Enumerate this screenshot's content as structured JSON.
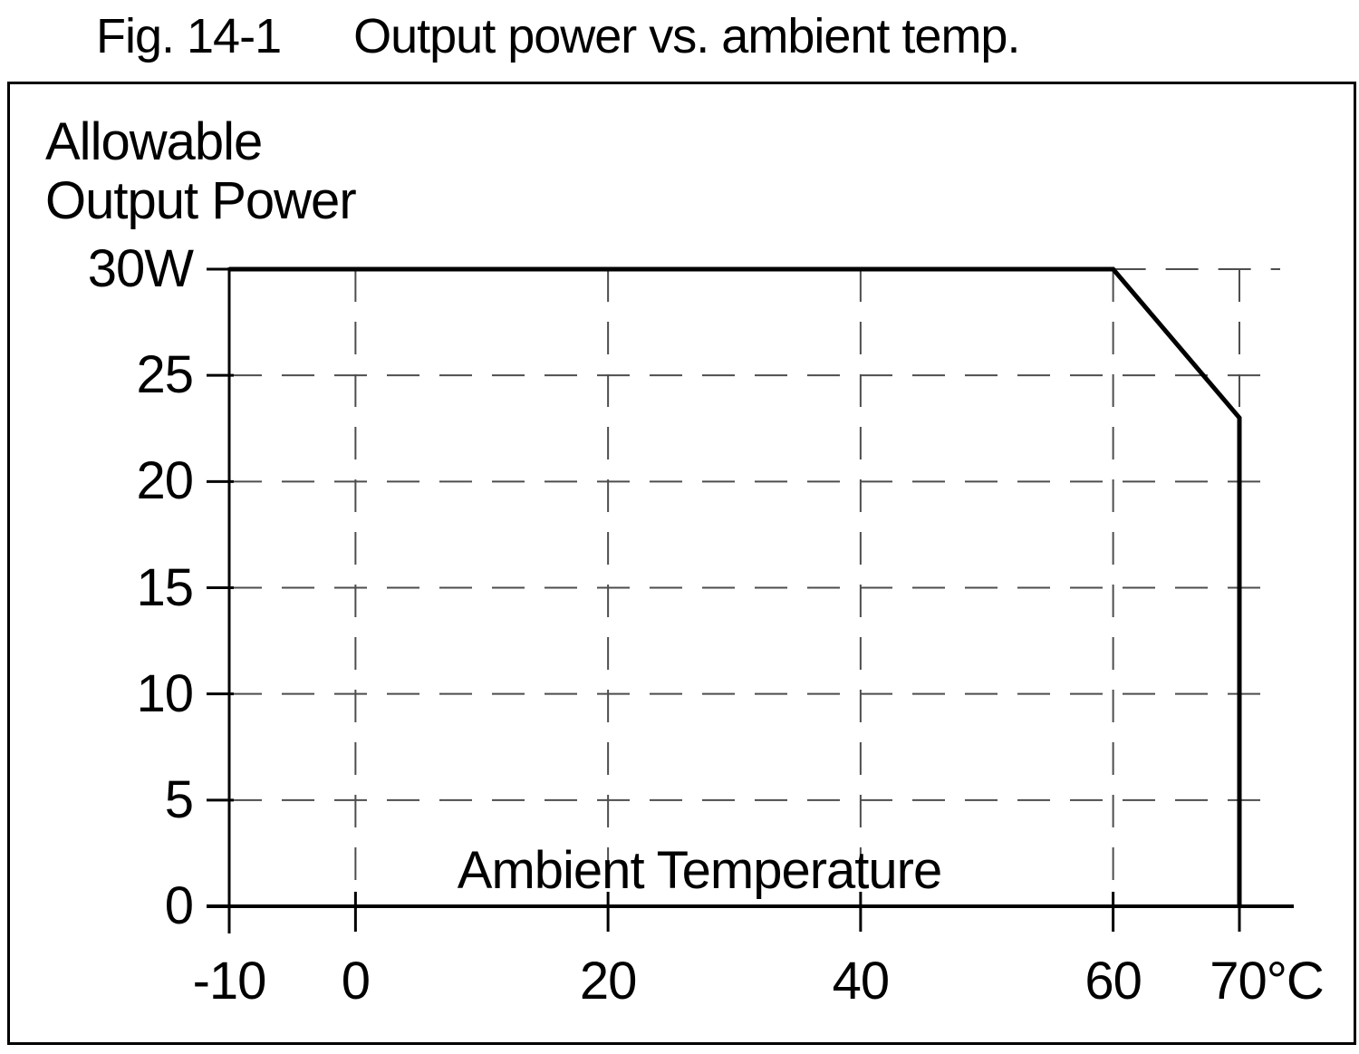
{
  "figure": {
    "label": "Fig. 14-1",
    "title": "Output power vs. ambient temp."
  },
  "axis_labels": {
    "y_line1": "Allowable",
    "y_line2": "Output Power",
    "x_inner": "Ambient Temperature"
  },
  "chart_data": {
    "type": "line",
    "title": "Fig. 14-1 Output power vs. ambient temp.",
    "xlabel": "Ambient Temperature",
    "ylabel": "Allowable Output Power",
    "x_unit": "°C",
    "y_unit": "W",
    "xlim": [
      -10,
      70
    ],
    "ylim": [
      0,
      30
    ],
    "x_ticks": [
      {
        "value": -10,
        "label": "-10"
      },
      {
        "value": 0,
        "label": "0"
      },
      {
        "value": 20,
        "label": "20"
      },
      {
        "value": 40,
        "label": "40"
      },
      {
        "value": 60,
        "label": "60"
      },
      {
        "value": 70,
        "label": "70°C"
      }
    ],
    "y_ticks": [
      {
        "value": 0,
        "label": "0"
      },
      {
        "value": 5,
        "label": "5"
      },
      {
        "value": 10,
        "label": "10"
      },
      {
        "value": 15,
        "label": "15"
      },
      {
        "value": 20,
        "label": "20"
      },
      {
        "value": 25,
        "label": "25"
      },
      {
        "value": 30,
        "label": "30W"
      }
    ],
    "grid": "dashed",
    "legend": "none",
    "series": [
      {
        "name": "allowable-output-power-derating",
        "points": [
          [
            -10,
            30
          ],
          [
            60,
            30
          ],
          [
            70,
            23
          ],
          [
            70,
            0
          ]
        ]
      }
    ],
    "gridlines": {
      "horizontal_values": [
        5,
        10,
        15,
        20,
        25,
        30
      ],
      "vertical_values": [
        0,
        20,
        40,
        60,
        70
      ]
    },
    "colors": {
      "curve": "#000000",
      "grid": "#4d4d4d",
      "axis": "#000000",
      "text": "#000000",
      "background": "#ffffff"
    }
  }
}
